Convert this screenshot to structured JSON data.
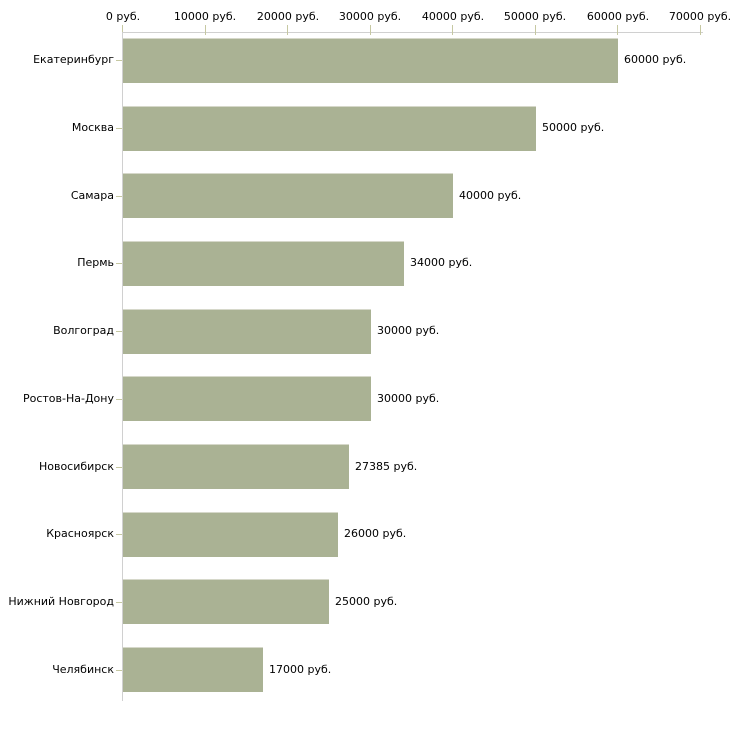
{
  "chart_data": {
    "type": "bar",
    "orientation": "horizontal",
    "title": "",
    "xlabel": "",
    "ylabel": "",
    "legend": "none",
    "grid": "off",
    "unit_suffix": " руб.",
    "categories": [
      "Екатеринбург",
      "Москва",
      "Самара",
      "Пермь",
      "Волгоград",
      "Ростов-На-Дону",
      "Новосибирск",
      "Красноярск",
      "Нижний Новгород",
      "Челябинск"
    ],
    "values": [
      60000,
      50000,
      40000,
      34000,
      30000,
      30000,
      27385,
      26000,
      25000,
      17000
    ],
    "value_labels": [
      "60000 руб.",
      "50000 руб.",
      "40000 руб.",
      "34000 руб.",
      "30000 руб.",
      "30000 руб.",
      "27385 руб.",
      "26000 руб.",
      "25000 руб.",
      "17000 руб."
    ],
    "x_axis": {
      "position": "top",
      "min": 0,
      "max": 70000,
      "tick_step": 10000,
      "tick_values": [
        0,
        10000,
        20000,
        30000,
        40000,
        50000,
        60000,
        70000
      ],
      "tick_labels": [
        "0 руб.",
        "10000 руб.",
        "20000 руб.",
        "30000 руб.",
        "40000 руб.",
        "50000 руб.",
        "60000 руб.",
        "70000 руб."
      ]
    },
    "colors": {
      "bar_fill": "#aab294",
      "bar_border": "#d6d8ca",
      "axis_line": "#d0d0d0",
      "tick_mark": "#c6c8a2",
      "label_text": "#000000",
      "background": "#ffffff"
    }
  }
}
